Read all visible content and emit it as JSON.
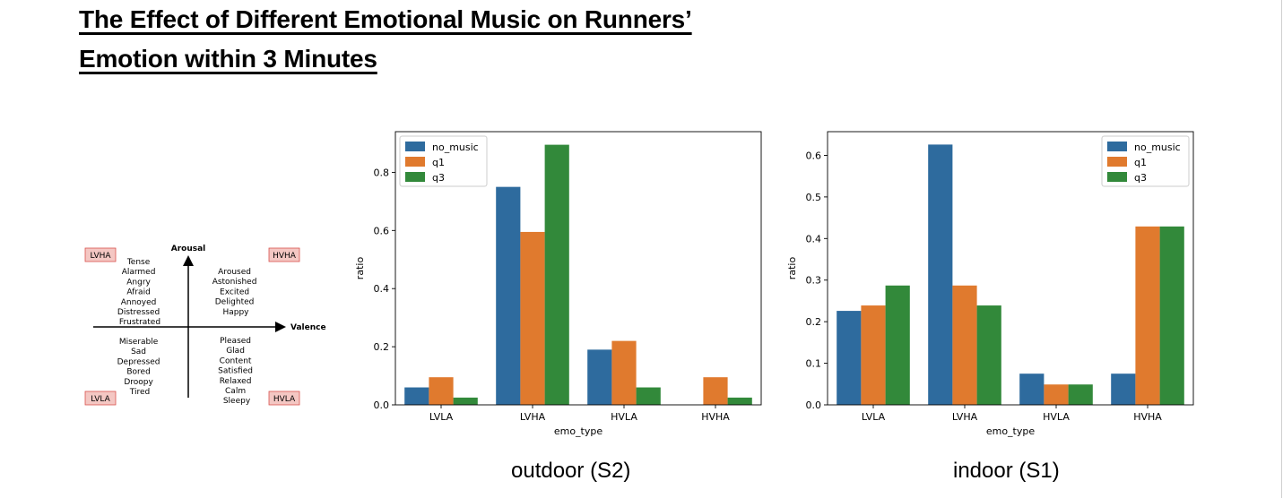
{
  "title": {
    "line1": "The Effect of Different Emotional Music on Runners’",
    "line2": "Emotion within 3 Minutes"
  },
  "diagram": {
    "x_axis": "Valence",
    "y_axis": "Arousal",
    "quadrants": {
      "top_left": {
        "tag": "LVHA",
        "words": [
          "Tense",
          "Alarmed",
          "Angry",
          "Afraid",
          "Annoyed",
          "Distressed",
          "Frustrated"
        ]
      },
      "top_right": {
        "tag": "HVHA",
        "words": [
          "Aroused",
          "Astonished",
          "Excited",
          "Delighted",
          "Happy"
        ]
      },
      "bottom_left": {
        "tag": "LVLA",
        "words": [
          "Miserable",
          "Sad",
          "Depressed",
          "Bored",
          "Droopy",
          "Tired"
        ]
      },
      "bottom_right": {
        "tag": "HVLA",
        "words": [
          "Pleased",
          "Glad",
          "Content",
          "Satisfied",
          "Relaxed",
          "Calm",
          "Sleepy"
        ]
      }
    },
    "tag_fill": "#f4c7c3",
    "tag_stroke": "#d9534f"
  },
  "chart_data": [
    {
      "type": "bar",
      "caption": "outdoor (S2)",
      "categories": [
        "LVLA",
        "LVHA",
        "HVLA",
        "HVHA"
      ],
      "series": [
        {
          "name": "no_music",
          "color": "#2e6b9e",
          "values": [
            0.06,
            0.75,
            0.19,
            0.0
          ]
        },
        {
          "name": "q1",
          "color": "#e07a2e",
          "values": [
            0.095,
            0.595,
            0.22,
            0.095
          ]
        },
        {
          "name": "q3",
          "color": "#32893a",
          "values": [
            0.025,
            0.895,
            0.06,
            0.025
          ]
        }
      ],
      "xlabel": "emo_type",
      "ylabel": "ratio",
      "ylim": [
        0,
        0.94
      ],
      "yticks": [
        0.0,
        0.2,
        0.4,
        0.6,
        0.8
      ],
      "ytick_labels": [
        "0.0",
        "0.2",
        "0.4",
        "0.6",
        "0.8"
      ],
      "legend": "top-left"
    },
    {
      "type": "bar",
      "caption": "indoor (S1)",
      "categories": [
        "LVLA",
        "LVHA",
        "HVLA",
        "HVHA"
      ],
      "series": [
        {
          "name": "no_music",
          "color": "#2e6b9e",
          "values": [
            0.226,
            0.626,
            0.075,
            0.075
          ]
        },
        {
          "name": "q1",
          "color": "#e07a2e",
          "values": [
            0.239,
            0.287,
            0.049,
            0.429
          ]
        },
        {
          "name": "q3",
          "color": "#32893a",
          "values": [
            0.287,
            0.239,
            0.049,
            0.429
          ]
        }
      ],
      "xlabel": "emo_type",
      "ylabel": "ratio",
      "ylim": [
        0,
        0.657
      ],
      "yticks": [
        0.0,
        0.1,
        0.2,
        0.3,
        0.4,
        0.5,
        0.6
      ],
      "ytick_labels": [
        "0.0",
        "0.1",
        "0.2",
        "0.3",
        "0.4",
        "0.5",
        "0.6"
      ],
      "legend": "top-right"
    }
  ]
}
